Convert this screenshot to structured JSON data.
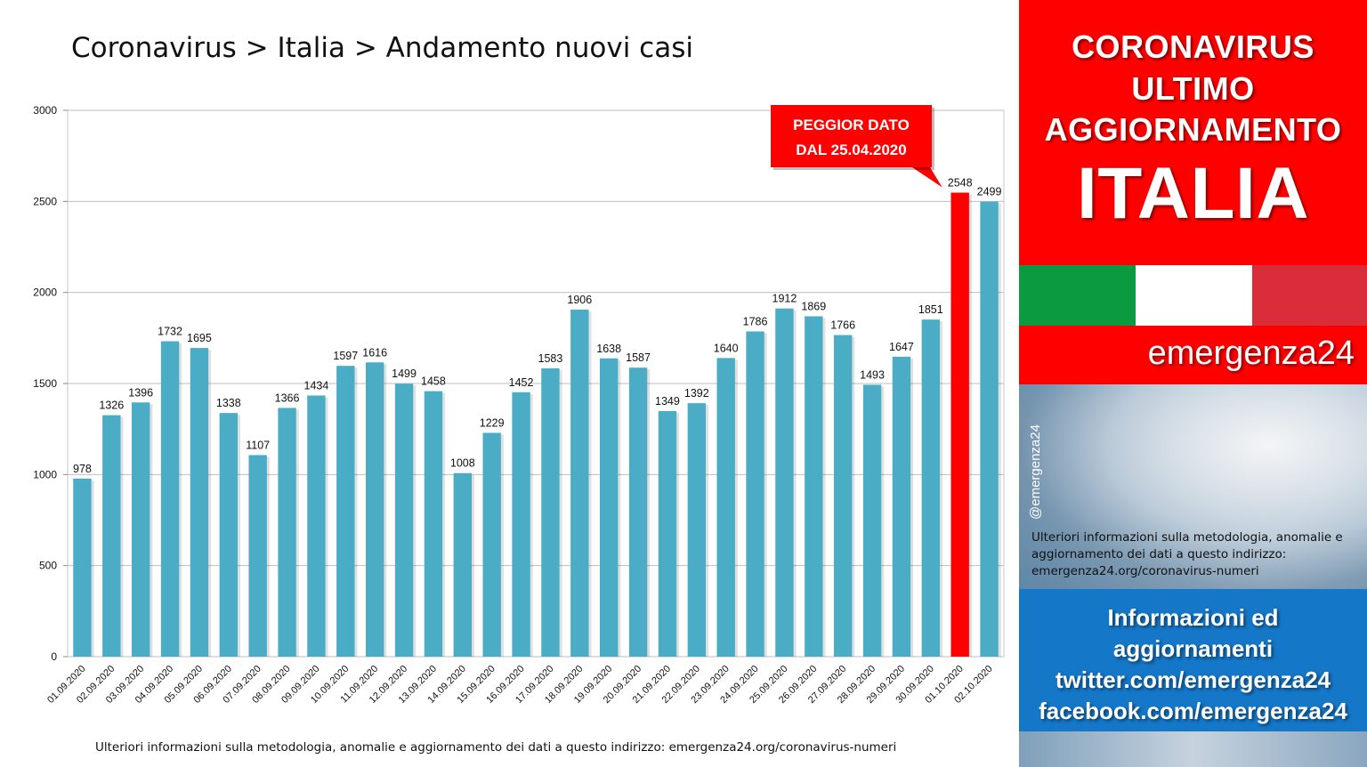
{
  "chart_data": {
    "type": "bar",
    "title": "Coronavirus > Italia > Andamento nuovi casi",
    "categories": [
      "01.09.2020",
      "02.09.2020",
      "03.09.2020",
      "04.09.2020",
      "05.09.2020",
      "06.09.2020",
      "07.09.2020",
      "08.09.2020",
      "09.09.2020",
      "10.09.2020",
      "11.09.2020",
      "12.09.2020",
      "13.09.2020",
      "14.09.2020",
      "15.09.2020",
      "16.09.2020",
      "17.09.2020",
      "18.09.2020",
      "19.09.2020",
      "20.09.2020",
      "21.09.2020",
      "22.09.2020",
      "23.09.2020",
      "24.09.2020",
      "25.09.2020",
      "26.09.2020",
      "27.09.2020",
      "28.09.2020",
      "29.09.2020",
      "30.09.2020",
      "01.10.2020",
      "02.10.2020"
    ],
    "values": [
      978,
      1326,
      1396,
      1732,
      1695,
      1338,
      1107,
      1366,
      1434,
      1597,
      1616,
      1499,
      1458,
      1008,
      1229,
      1452,
      1583,
      1906,
      1638,
      1587,
      1349,
      1392,
      1640,
      1786,
      1912,
      1869,
      1766,
      1493,
      1647,
      1851,
      2548,
      2499
    ],
    "highlight_index": 30,
    "ylim": [
      0,
      3000
    ],
    "yticks": [
      0,
      500,
      1000,
      1500,
      2000,
      2500,
      3000
    ],
    "grid": true,
    "bar_color": "#4bacc6",
    "highlight_color": "#ff0000",
    "annotation": {
      "line1": "PEGGIOR DATO",
      "line2": "DAL 25.04.2020"
    }
  },
  "footer_note": "Ulteriori informazioni sulla metodologia, anomalie e aggiornamento dei dati a questo indirizzo: emergenza24.org/coronavirus-numeri",
  "sidebar": {
    "header": {
      "line1": "CORONAVIRUS",
      "line2": "ULTIMO",
      "line3": "AGGIORNAMENTO",
      "line4": "ITALIA"
    },
    "brand": "emergenza24",
    "photo_handle": "@emergenza24",
    "photo_text": "Ulteriori informazioni sulla metodologia, anomalie e aggiornamento dei dati a questo indirizzo: emergenza24.org/coronavirus-numeri",
    "info": {
      "line1": "Informazioni ed",
      "line2": "aggiornamenti",
      "line3": "twitter.com/emergenza24",
      "line4": "facebook.com/emergenza24"
    }
  },
  "colors": {
    "flag_green": "#0b9a40",
    "flag_white": "#ffffff",
    "flag_red": "#d92e3a",
    "header_red": "#ff0000",
    "info_blue": "#1577c7"
  }
}
